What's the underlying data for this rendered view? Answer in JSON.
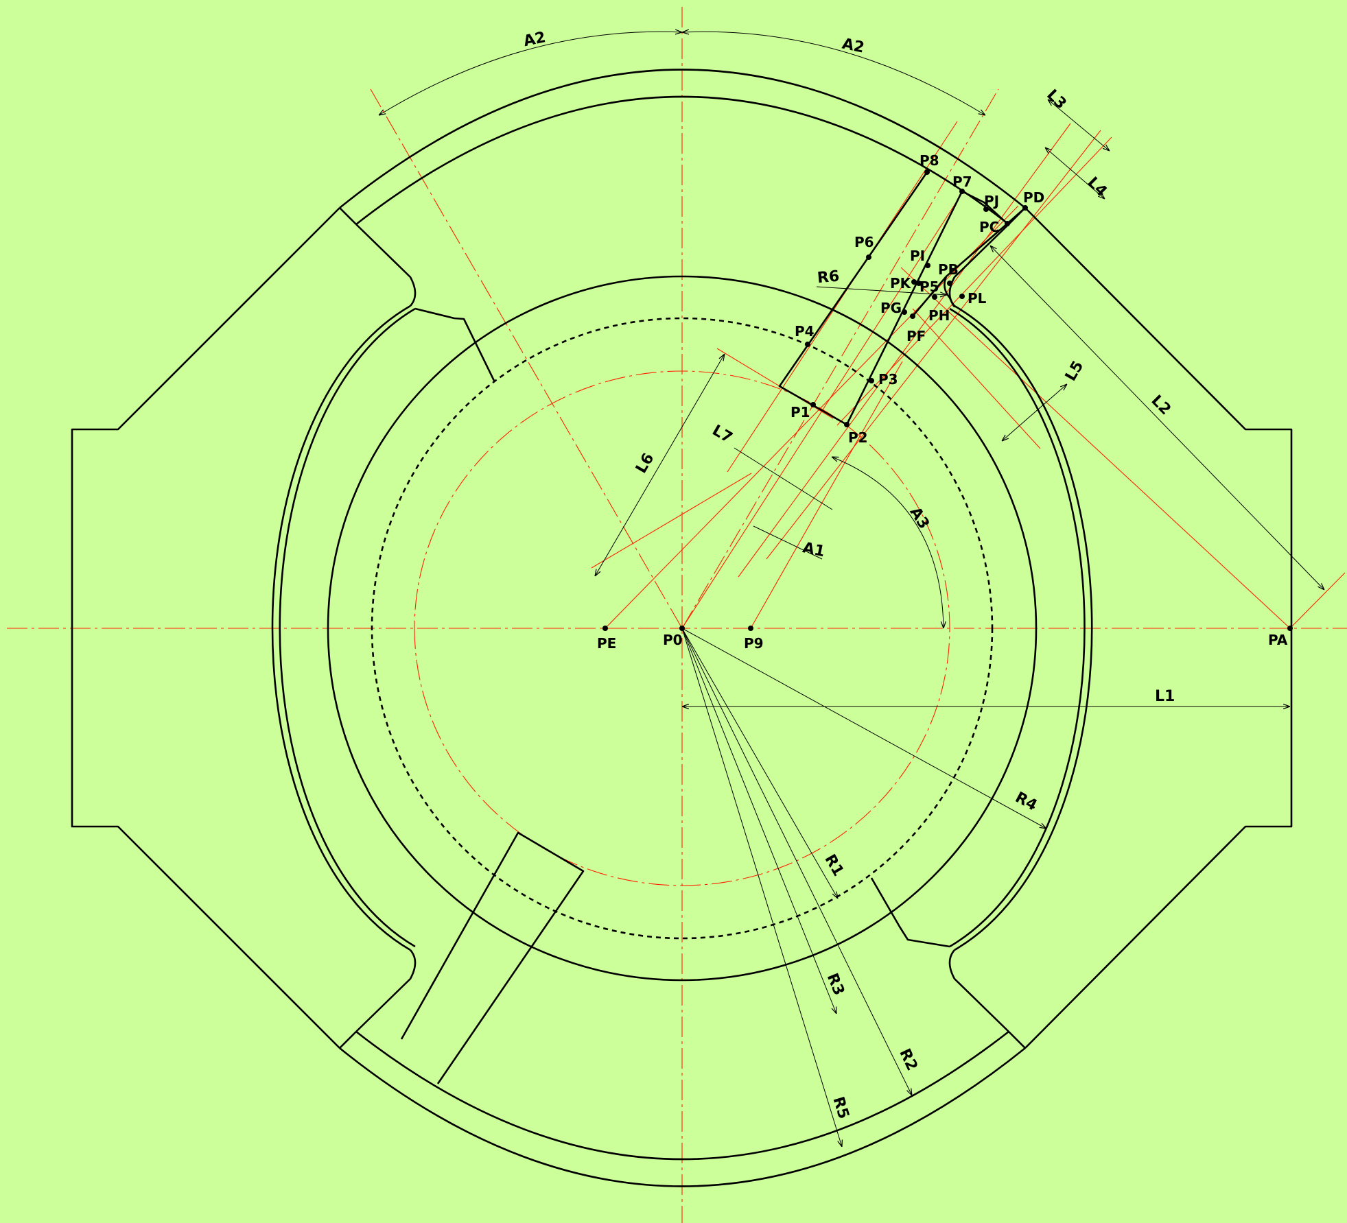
{
  "points": {
    "P0": "P0",
    "P1": "P1",
    "P2": "P2",
    "P3": "P3",
    "P4": "P4",
    "P5": "P5",
    "P6": "P6",
    "P7": "P7",
    "P8": "P8",
    "P9": "P9",
    "PA": "PA",
    "PB": "PB",
    "PC": "PC",
    "PD": "PD",
    "PE": "PE",
    "PF": "PF",
    "PG": "PG",
    "PH": "PH",
    "PI": "PI",
    "PJ": "PJ",
    "PK": "PK",
    "PL": "PL"
  },
  "dimensions": {
    "A1": "A1",
    "A2": "A2",
    "A3": "A3",
    "L1": "L1",
    "L2": "L2",
    "L3": "L3",
    "L4": "L4",
    "L5": "L5",
    "L6": "L6",
    "L7": "L7",
    "R1": "R1",
    "R2": "R2",
    "R3": "R3",
    "R4": "R4",
    "R5": "R5",
    "R6": "R6"
  },
  "colors": {
    "background": "#ccff99",
    "outline": "#000000",
    "construction": "#ff2200"
  }
}
